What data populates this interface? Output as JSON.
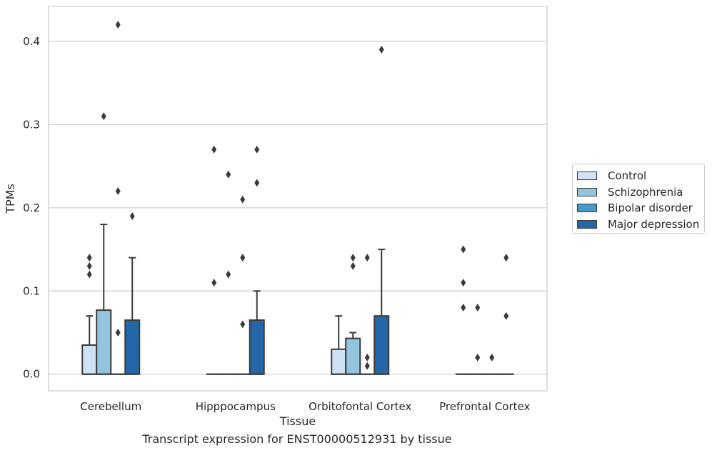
{
  "chart_data": {
    "type": "box",
    "xlabel": "Tissue",
    "ylabel": "TPMs",
    "caption": "Transcript expression for ENST00000512931 by tissue",
    "ylim": [
      -0.02,
      0.442
    ],
    "yticks": [
      "0.0",
      "0.1",
      "0.2",
      "0.3",
      "0.4"
    ],
    "categories": [
      "Cerebellum",
      "Hipppocampus",
      "Orbitofontal Cortex",
      "Prefrontal Cortex"
    ],
    "grid": "horizontal",
    "legend_position": "right",
    "series": [
      {
        "name": "Control",
        "color": "#cfe1f2",
        "boxes": [
          {
            "q1": 0,
            "q3": 0.035,
            "median": 0,
            "whisker_low": 0,
            "whisker_high": 0.07,
            "outliers": [
              0.12,
              0.13,
              0.14
            ]
          },
          {
            "q1": 0,
            "q3": 0,
            "median": 0,
            "whisker_low": 0,
            "whisker_high": 0,
            "outliers": [
              0.11,
              0.27
            ]
          },
          {
            "q1": 0,
            "q3": 0.03,
            "median": 0,
            "whisker_low": 0,
            "whisker_high": 0.07,
            "outliers": []
          },
          {
            "q1": 0,
            "q3": 0,
            "median": 0,
            "whisker_low": 0,
            "whisker_high": 0,
            "outliers": [
              0.08,
              0.11,
              0.15
            ]
          }
        ]
      },
      {
        "name": "Schizophrenia",
        "color": "#93c4de",
        "boxes": [
          {
            "q1": 0,
            "q3": 0.077,
            "median": 0,
            "whisker_low": 0,
            "whisker_high": 0.18,
            "outliers": [
              0.31
            ]
          },
          {
            "q1": 0,
            "q3": 0,
            "median": 0,
            "whisker_low": 0,
            "whisker_high": 0,
            "outliers": [
              0.12,
              0.24
            ]
          },
          {
            "q1": 0,
            "q3": 0.043,
            "median": 0,
            "whisker_low": 0,
            "whisker_high": 0.05,
            "outliers": [
              0.13,
              0.14
            ]
          },
          {
            "q1": 0,
            "q3": 0,
            "median": 0,
            "whisker_low": 0,
            "whisker_high": 0,
            "outliers": [
              0.02,
              0.08
            ]
          }
        ]
      },
      {
        "name": "Bipolar disorder",
        "color": "#4a98c9",
        "boxes": [
          {
            "q1": 0,
            "q3": 0,
            "median": 0,
            "whisker_low": 0,
            "whisker_high": 0,
            "outliers": [
              0.05,
              0.22,
              0.42
            ]
          },
          {
            "q1": 0,
            "q3": 0,
            "median": 0,
            "whisker_low": 0,
            "whisker_high": 0,
            "outliers": [
              0.06,
              0.14,
              0.21
            ]
          },
          {
            "q1": 0,
            "q3": 0,
            "median": 0,
            "whisker_low": 0,
            "whisker_high": 0,
            "outliers": [
              0.01,
              0.02,
              0.14
            ]
          },
          {
            "q1": 0,
            "q3": 0,
            "median": 0,
            "whisker_low": 0,
            "whisker_high": 0,
            "outliers": [
              0.02
            ]
          }
        ]
      },
      {
        "name": "Major depression",
        "color": "#2467a8",
        "boxes": [
          {
            "q1": 0,
            "q3": 0.065,
            "median": 0,
            "whisker_low": 0,
            "whisker_high": 0.14,
            "outliers": [
              0.19
            ]
          },
          {
            "q1": 0,
            "q3": 0.065,
            "median": 0,
            "whisker_low": 0,
            "whisker_high": 0.1,
            "outliers": [
              0.23,
              0.27
            ]
          },
          {
            "q1": 0,
            "q3": 0.07,
            "median": 0,
            "whisker_low": 0,
            "whisker_high": 0.15,
            "outliers": [
              0.39
            ]
          },
          {
            "q1": 0,
            "q3": 0,
            "median": 0,
            "whisker_low": 0,
            "whisker_high": 0,
            "outliers": [
              0.07,
              0.14
            ]
          }
        ]
      }
    ]
  }
}
